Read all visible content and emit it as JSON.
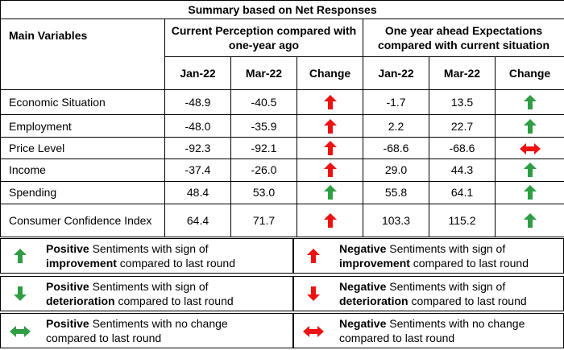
{
  "title": "Summary based on Net Responses",
  "main_variables_label": "Main Variables",
  "current_header": "Current Perception compared with one-year ago",
  "ahead_header": "One year ahead Expectations compared with current situation",
  "sub_headers": {
    "jan": "Jan-22",
    "mar": "Mar-22",
    "change": "Change"
  },
  "colors": {
    "green": "#2e9e44",
    "red": "#ee1111"
  },
  "rows": [
    {
      "name": "Economic Situation",
      "cur_jan": "-48.9",
      "cur_mar": "-40.5",
      "cur_change": "up-red",
      "ahd_jan": "-1.7",
      "ahd_mar": "13.5",
      "ahd_change": "up-green"
    },
    {
      "name": "Employment",
      "cur_jan": "-48.0",
      "cur_mar": "-35.9",
      "cur_change": "up-red",
      "ahd_jan": "2.2",
      "ahd_mar": "22.7",
      "ahd_change": "up-green"
    },
    {
      "name": "Price Level",
      "cur_jan": "-92.3",
      "cur_mar": "-92.1",
      "cur_change": "up-red",
      "ahd_jan": "-68.6",
      "ahd_mar": "-68.6",
      "ahd_change": "lr-red"
    },
    {
      "name": "Income",
      "cur_jan": "-37.4",
      "cur_mar": "-26.0",
      "cur_change": "up-red",
      "ahd_jan": "29.0",
      "ahd_mar": "44.3",
      "ahd_change": "up-green"
    },
    {
      "name": "Spending",
      "cur_jan": "48.4",
      "cur_mar": "53.0",
      "cur_change": "up-green",
      "ahd_jan": "55.8",
      "ahd_mar": "64.1",
      "ahd_change": "up-green"
    },
    {
      "name": "Consumer Confidence Index",
      "cur_jan": "64.4",
      "cur_mar": "71.7",
      "cur_change": "up-red",
      "ahd_jan": "103.3",
      "ahd_mar": "115.2",
      "ahd_change": "up-green"
    }
  ],
  "legend": {
    "pos_improve": {
      "icon": "up-green",
      "bold1": "Positive",
      "text1": " Sentiments with sign of",
      "bold2": "improvement",
      "text2": " compared to last round"
    },
    "neg_improve": {
      "icon": "up-red",
      "bold1": "Negative",
      "text1": " Sentiments with sign of",
      "bold2": "improvement",
      "text2": " compared to last round"
    },
    "pos_deter": {
      "icon": "down-green",
      "bold1": "Positive",
      "text1": " Sentiments with sign of",
      "bold2": "deterioration",
      "text2": " compared to last round"
    },
    "neg_deter": {
      "icon": "down-red",
      "bold1": "Negative",
      "text1": " Sentiments with sign of",
      "bold2": "deterioration",
      "text2": " compared to last round"
    },
    "pos_nochange": {
      "icon": "lr-green",
      "bold1": "Positive",
      "text1": " Sentiments with no change",
      "line2": "compared to last round"
    },
    "neg_nochange": {
      "icon": "lr-red",
      "bold1": "Negative",
      "text1": " Sentiments with no change",
      "line2": "compared to last round"
    }
  }
}
